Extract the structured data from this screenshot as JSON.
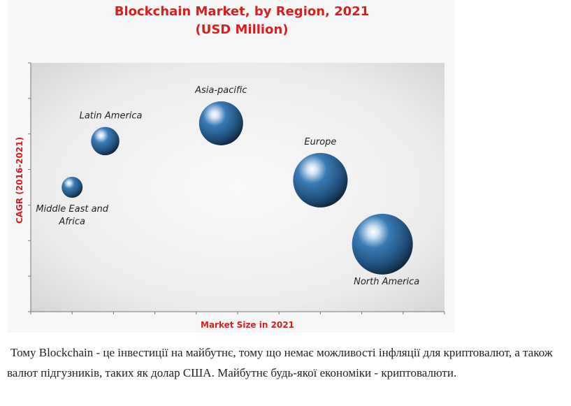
{
  "chart_data": {
    "type": "scatter",
    "title": "Blockchain Market, by Region, 2021",
    "subtitle": "(USD Million)",
    "xlabel": "Market Size in 2021",
    "ylabel": "CAGR (2016-2021)",
    "xlim": [
      0,
      10
    ],
    "ylim": [
      0,
      7
    ],
    "grid": false,
    "series": [
      {
        "points": [
          {
            "label": "Middle East and Africa",
            "x": 1.0,
            "y": 3.5,
            "size": 1.0
          },
          {
            "label": "Latin America",
            "x": 1.8,
            "y": 4.8,
            "size": 1.35
          },
          {
            "label": "Asia-pacific",
            "x": 4.6,
            "y": 5.3,
            "size": 2.1
          },
          {
            "label": "Europe",
            "x": 7.0,
            "y": 3.7,
            "size": 2.6
          },
          {
            "label": "North America",
            "x": 8.5,
            "y": 1.9,
            "size": 2.9
          }
        ]
      }
    ],
    "colors": {
      "bubble": "#2f6fa8",
      "title": "#d81e1e"
    }
  },
  "caption": "Тому Blockchain - це інвестиції на майбутнє, тому що немає можливості інфляції для криптовалют, а також валют підгузників, таких як долар США. Майбутнє будь-якої економіки - криптовалюти."
}
